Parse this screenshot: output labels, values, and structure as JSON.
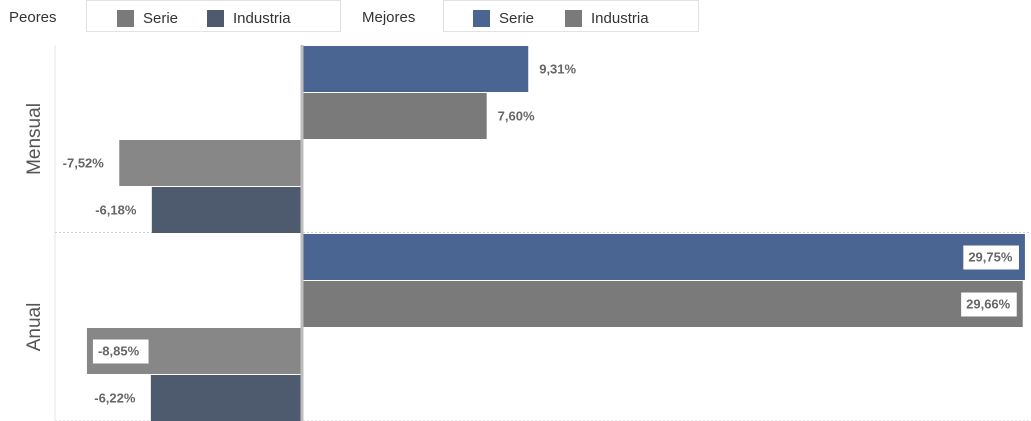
{
  "legend": {
    "worst_title": "Peores",
    "worst_items": [
      {
        "label": "Serie",
        "color": "#7a7a7a"
      },
      {
        "label": "Industria",
        "color": "#4e5a6e"
      }
    ],
    "best_title": "Mejores",
    "best_items": [
      {
        "label": "Serie",
        "color": "#4a6591"
      },
      {
        "label": "Industria",
        "color": "#7a7a7a"
      }
    ]
  },
  "chart_data": {
    "type": "bar",
    "orientation": "horizontal",
    "categories": [
      "Mensual",
      "Anual"
    ],
    "series": [
      {
        "name": "Mejores Serie",
        "values": [
          9.31,
          29.75
        ],
        "labels": [
          "9,31%",
          "29,75%"
        ],
        "color": "#4a6591"
      },
      {
        "name": "Mejores Industria",
        "values": [
          7.6,
          29.66
        ],
        "labels": [
          "7,60%",
          "29,66%"
        ],
        "color": "#7a7a7a"
      },
      {
        "name": "Peores Serie",
        "values": [
          -7.52,
          -8.85
        ],
        "labels": [
          "-7,52%",
          "-8,85%"
        ],
        "color": "#878787"
      },
      {
        "name": "Peores Industria",
        "values": [
          -6.18,
          -6.22
        ],
        "labels": [
          "-6,18%",
          "-6,22%"
        ],
        "color": "#4e5a6e"
      }
    ],
    "xlim": [
      -15,
      30
    ],
    "grid": false,
    "legend_position": "top"
  }
}
